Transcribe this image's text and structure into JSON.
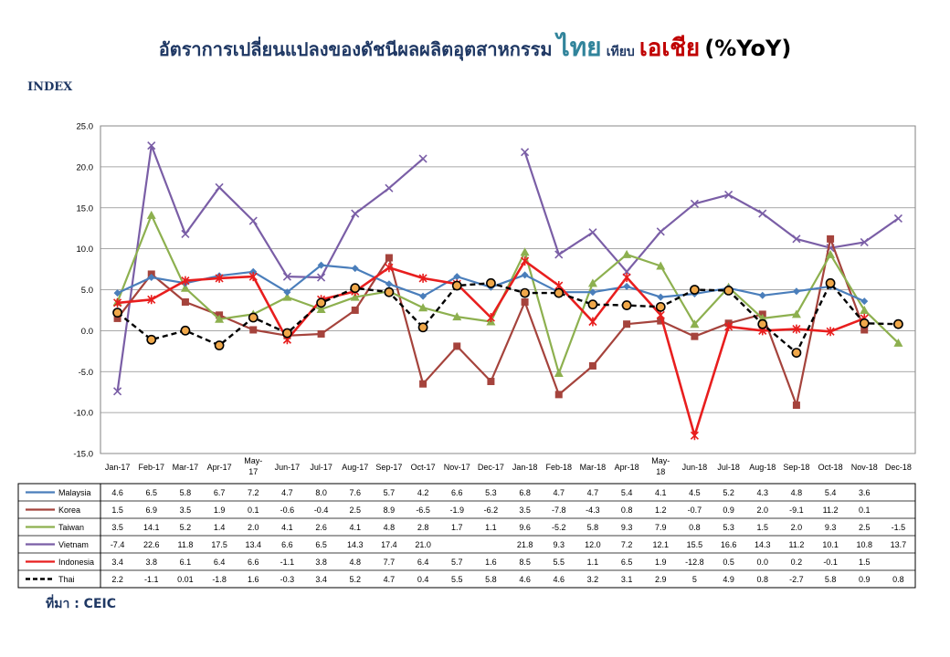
{
  "title": {
    "part1": "อัตราการเปลี่ยนแปลงของดัชนีผลผลิตอุตสาหกรรม",
    "part2": "ไทย",
    "part3": "เทียบ",
    "part4": "เอเชีย",
    "part5": "(%YoY)"
  },
  "index_label": "INDEX",
  "source": "ที่มา : CEIC",
  "colors": {
    "Malaysia": "#4a7ebb",
    "Korea": "#a5433c",
    "Taiwan": "#8db04f",
    "Vietnam": "#7a5ea6",
    "Indonesia": "#e81e1e",
    "Thai": "#000000"
  },
  "chart_data": {
    "type": "line",
    "ylim": [
      -15,
      25
    ],
    "yticks": [
      "25.0",
      "20.0",
      "15.0",
      "10.0",
      "5.0",
      "0.0",
      "-5.0",
      "-10.0",
      "-15.0"
    ],
    "grid": true,
    "legend": "table-left",
    "categories": [
      "Jan-17",
      "Feb-17",
      "Mar-17",
      "Apr-17",
      "May-17",
      "Jun-17",
      "Jul-17",
      "Aug-17",
      "Sep-17",
      "Oct-17",
      "Nov-17",
      "Dec-17",
      "Jan-18",
      "Feb-18",
      "Mar-18",
      "Apr-18",
      "May-18",
      "Jun-18",
      "Jul-18",
      "Aug-18",
      "Sep-18",
      "Oct-18",
      "Nov-18",
      "Dec-18"
    ],
    "series": [
      {
        "name": "Malaysia",
        "values": [
          4.6,
          6.5,
          5.8,
          6.7,
          7.2,
          4.7,
          8.0,
          7.6,
          5.7,
          4.2,
          6.6,
          5.3,
          6.8,
          4.7,
          4.7,
          5.4,
          4.1,
          4.5,
          5.2,
          4.3,
          4.8,
          5.4,
          3.6,
          null
        ],
        "labels": [
          "4.6",
          "6.5",
          "5.8",
          "6.7",
          "7.2",
          "4.7",
          "8.0",
          "7.6",
          "5.7",
          "4.2",
          "6.6",
          "5.3",
          "6.8",
          "4.7",
          "4.7",
          "5.4",
          "4.1",
          "4.5",
          "5.2",
          "4.3",
          "4.8",
          "5.4",
          "3.6",
          ""
        ]
      },
      {
        "name": "Korea",
        "values": [
          1.5,
          6.9,
          3.5,
          1.9,
          0.1,
          -0.6,
          -0.4,
          2.5,
          8.9,
          -6.5,
          -1.9,
          -6.2,
          3.5,
          -7.8,
          -4.3,
          0.8,
          1.2,
          -0.7,
          0.9,
          2.0,
          -9.1,
          11.2,
          0.1,
          null
        ],
        "labels": [
          "1.5",
          "6.9",
          "3.5",
          "1.9",
          "0.1",
          "-0.6",
          "-0.4",
          "2.5",
          "8.9",
          "-6.5",
          "-1.9",
          "-6.2",
          "3.5",
          "-7.8",
          "-4.3",
          "0.8",
          "1.2",
          "-0.7",
          "0.9",
          "2.0",
          "-9.1",
          "11.2",
          "0.1",
          ""
        ]
      },
      {
        "name": "Taiwan",
        "values": [
          3.5,
          14.1,
          5.2,
          1.4,
          2.0,
          4.1,
          2.6,
          4.1,
          4.8,
          2.8,
          1.7,
          1.1,
          9.6,
          -5.2,
          5.8,
          9.3,
          7.9,
          0.8,
          5.3,
          1.5,
          2.0,
          9.3,
          2.5,
          -1.5
        ],
        "labels": [
          "3.5",
          "14.1",
          "5.2",
          "1.4",
          "2.0",
          "4.1",
          "2.6",
          "4.1",
          "4.8",
          "2.8",
          "1.7",
          "1.1",
          "9.6",
          "-5.2",
          "5.8",
          "9.3",
          "7.9",
          "0.8",
          "5.3",
          "1.5",
          "2.0",
          "9.3",
          "2.5",
          "-1.5"
        ]
      },
      {
        "name": "Vietnam",
        "values": [
          -7.4,
          22.6,
          11.8,
          17.5,
          13.4,
          6.6,
          6.5,
          14.3,
          17.4,
          21.0,
          null,
          null,
          21.8,
          9.3,
          12.0,
          7.2,
          12.1,
          15.5,
          16.6,
          14.3,
          11.2,
          10.1,
          10.8,
          13.7
        ],
        "labels": [
          "-7.4",
          "22.6",
          "11.8",
          "17.5",
          "13.4",
          "6.6",
          "6.5",
          "14.3",
          "17.4",
          "21.0",
          "",
          "",
          "21.8",
          "9.3",
          "12.0",
          "7.2",
          "12.1",
          "15.5",
          "16.6",
          "14.3",
          "11.2",
          "10.1",
          "10.8",
          "13.7"
        ]
      },
      {
        "name": "Indonesia",
        "values": [
          3.4,
          3.8,
          6.1,
          6.4,
          6.6,
          -1.1,
          3.8,
          4.8,
          7.7,
          6.4,
          5.7,
          1.6,
          8.5,
          5.5,
          1.1,
          6.5,
          1.9,
          -12.8,
          0.5,
          0.0,
          0.2,
          -0.1,
          1.5,
          null
        ],
        "labels": [
          "3.4",
          "3.8",
          "6.1",
          "6.4",
          "6.6",
          "-1.1",
          "3.8",
          "4.8",
          "7.7",
          "6.4",
          "5.7",
          "1.6",
          "8.5",
          "5.5",
          "1.1",
          "6.5",
          "1.9",
          "-12.8",
          "0.5",
          "0.0",
          "0.2",
          "-0.1",
          "1.5",
          ""
        ]
      },
      {
        "name": "Thai",
        "values": [
          2.2,
          -1.1,
          0.01,
          -1.8,
          1.6,
          -0.3,
          3.4,
          5.2,
          4.7,
          0.4,
          5.5,
          5.8,
          4.6,
          4.6,
          3.2,
          3.1,
          2.9,
          5,
          4.9,
          0.8,
          -2.7,
          5.8,
          0.9,
          0.8
        ],
        "labels": [
          "2.2",
          "-1.1",
          "0.01",
          "-1.8",
          "1.6",
          "-0.3",
          "3.4",
          "5.2",
          "4.7",
          "0.4",
          "5.5",
          "5.8",
          "4.6",
          "4.6",
          "3.2",
          "3.1",
          "2.9",
          "5",
          "4.9",
          "0.8",
          "-2.7",
          "5.8",
          "0.9",
          "0.8"
        ]
      }
    ]
  }
}
